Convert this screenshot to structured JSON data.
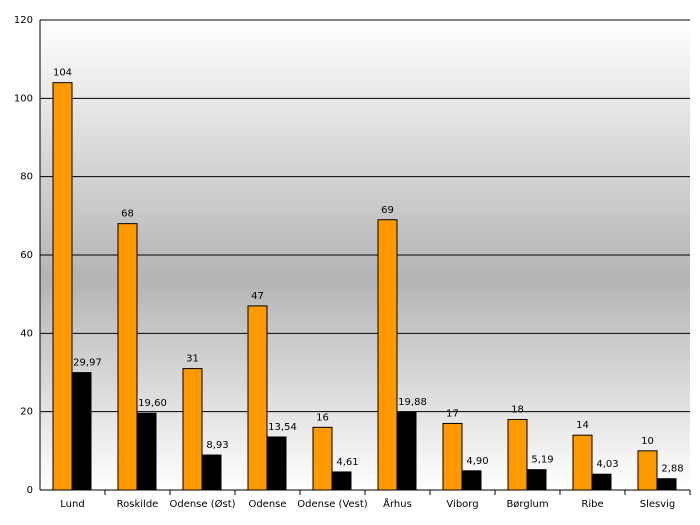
{
  "chart_data": {
    "type": "bar",
    "categories": [
      "Lund",
      "Roskilde",
      "Odense (Øst)",
      "Odense",
      "Odense (Vest)",
      "Århus",
      "Viborg",
      "Børglum",
      "Ribe",
      "Slesvig"
    ],
    "series": [
      {
        "color": "#ff9900",
        "values": [
          104,
          68,
          31,
          47,
          16,
          69,
          17,
          18,
          14,
          10
        ]
      },
      {
        "color": "#000000",
        "values": [
          29.97,
          19.6,
          8.93,
          13.54,
          4.61,
          19.88,
          4.9,
          5.19,
          4.03,
          2.88
        ],
        "value_labels": [
          "29,97",
          "19,60",
          "8,93",
          "13,54",
          "4,61",
          "19,88",
          "4,90",
          "5,19",
          "4,03",
          "2,88"
        ]
      }
    ],
    "ylim": [
      0,
      120
    ],
    "yticks": [
      0,
      20,
      40,
      60,
      80,
      100,
      120
    ],
    "grid": true
  }
}
